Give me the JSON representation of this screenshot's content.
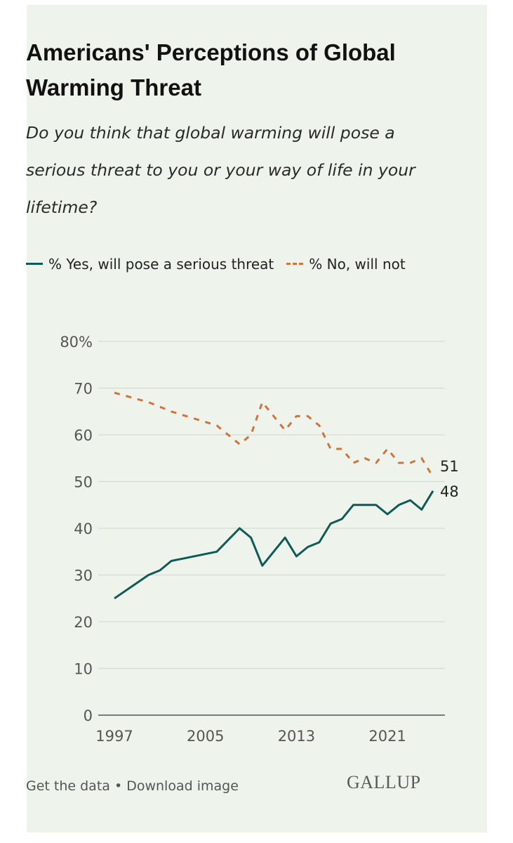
{
  "colors": {
    "yes": "#0e5a56",
    "no": "#d2733c",
    "grid": "#d4dcd2",
    "background": "#eef4ec"
  },
  "footer": {
    "get_data": "Get the data",
    "separator": " • ",
    "download": "Download image"
  },
  "logo": {
    "text": "GALLUP"
  },
  "chart_data": {
    "type": "line",
    "title": "Americans' Perceptions of Global Warming Threat",
    "subtitle": "Do you think that global warming will pose a serious threat to you or your way of life in your lifetime?",
    "xlim": [
      1997,
      2024
    ],
    "ylim": [
      0,
      80
    ],
    "x_ticks": [
      1997,
      2005,
      2013,
      2021
    ],
    "y_ticks": [
      0,
      10,
      20,
      30,
      40,
      50,
      60,
      70,
      80
    ],
    "y_tick_labels": [
      "0",
      "10",
      "20",
      "30",
      "40",
      "50",
      "60",
      "70",
      "80%"
    ],
    "grid": true,
    "legend": "top",
    "series": [
      {
        "name": "% Yes, will pose a serious threat",
        "style": "solid",
        "end_label": "48",
        "x": [
          1997,
          2000,
          2001,
          2002,
          2006,
          2008,
          2009,
          2010,
          2012,
          2013,
          2014,
          2015,
          2016,
          2017,
          2018,
          2019,
          2020,
          2021,
          2022,
          2023,
          2024,
          2025
        ],
        "y": [
          25,
          30,
          31,
          33,
          35,
          40,
          38,
          32,
          38,
          34,
          36,
          37,
          41,
          42,
          45,
          45,
          45,
          43,
          45,
          46,
          44,
          48
        ]
      },
      {
        "name": "% No, will not",
        "style": "dashed",
        "end_label": "51",
        "x": [
          1997,
          2000,
          2001,
          2002,
          2006,
          2008,
          2009,
          2010,
          2012,
          2013,
          2014,
          2015,
          2016,
          2017,
          2018,
          2019,
          2020,
          2021,
          2022,
          2023,
          2024,
          2025
        ],
        "y": [
          69,
          67,
          66,
          65,
          62,
          58,
          60,
          67,
          61,
          64,
          64,
          62,
          57,
          57,
          54,
          55,
          54,
          57,
          54,
          54,
          55,
          51
        ]
      }
    ]
  }
}
